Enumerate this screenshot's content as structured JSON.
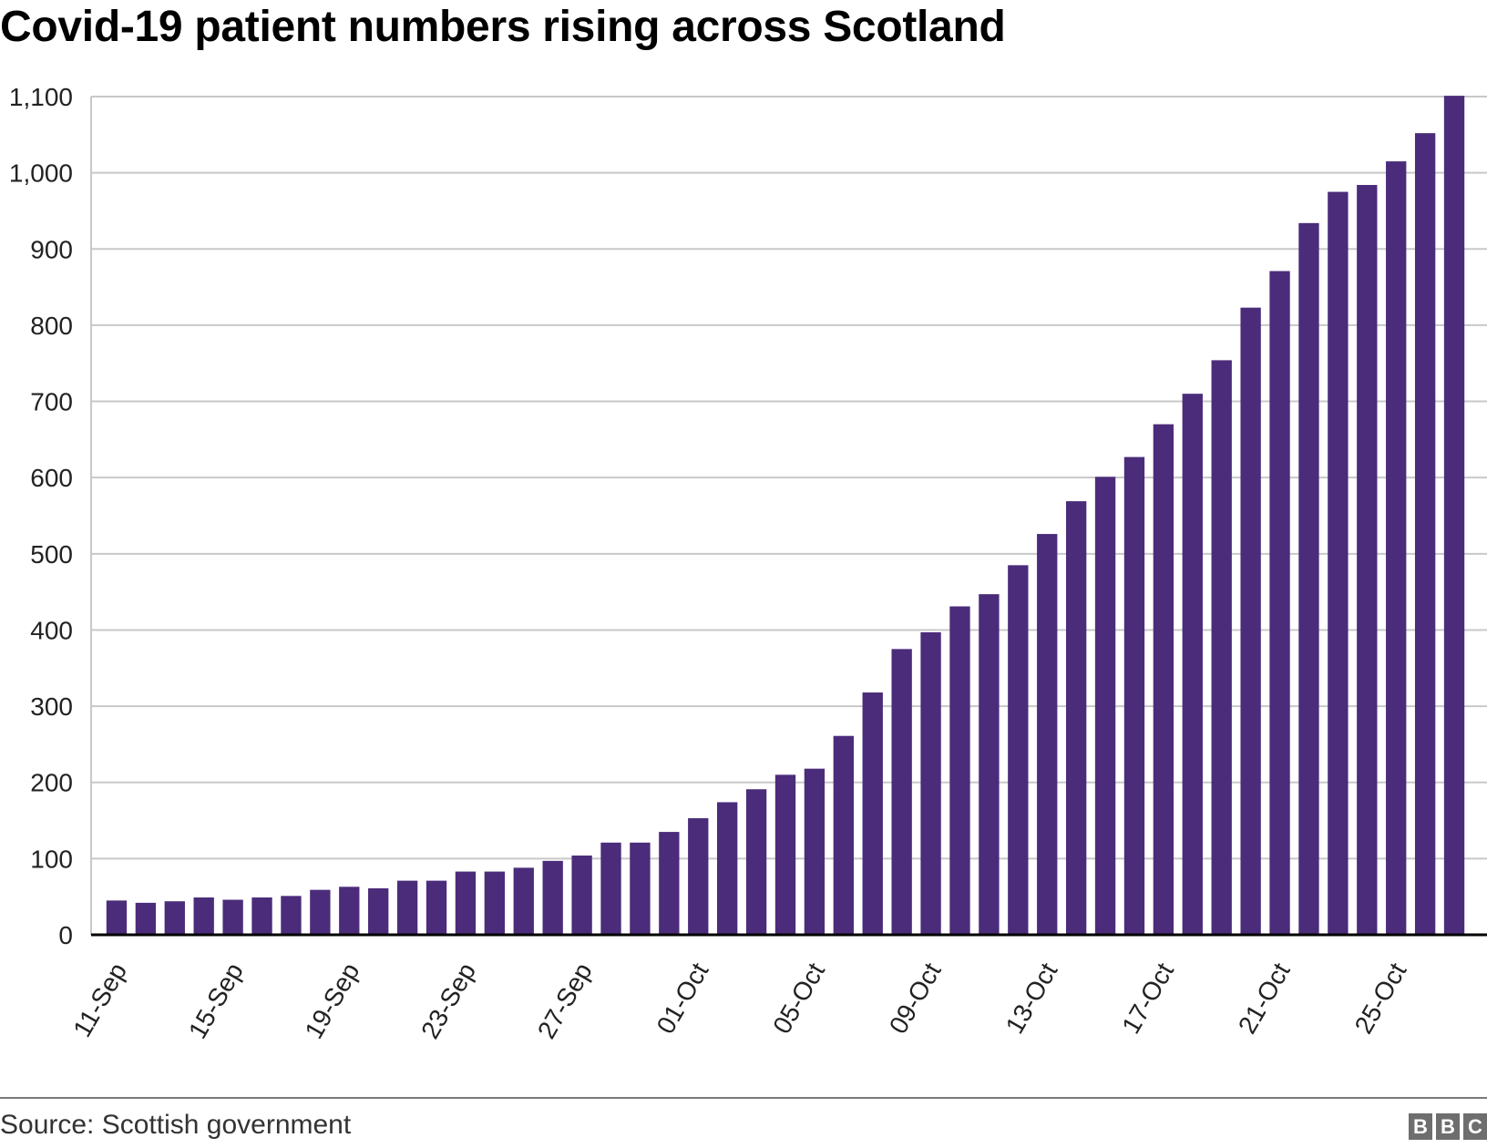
{
  "chart_data": {
    "type": "bar",
    "title": "Covid-19 patient numbers rising across Scotland",
    "xlabel": "",
    "ylabel": "",
    "ylim": [
      0,
      1100
    ],
    "yticks": [
      0,
      100,
      200,
      300,
      400,
      500,
      600,
      700,
      800,
      900,
      1000,
      1100
    ],
    "ytick_labels": [
      "0",
      "100",
      "200",
      "300",
      "400",
      "500",
      "600",
      "700",
      "800",
      "900",
      "1,000",
      "1,100"
    ],
    "grid": true,
    "bar_color": "#4b2c7a",
    "categories": [
      "11-Sep",
      "12-Sep",
      "13-Sep",
      "14-Sep",
      "15-Sep",
      "16-Sep",
      "17-Sep",
      "18-Sep",
      "19-Sep",
      "20-Sep",
      "21-Sep",
      "22-Sep",
      "23-Sep",
      "24-Sep",
      "25-Sep",
      "26-Sep",
      "27-Sep",
      "28-Sep",
      "29-Sep",
      "30-Sep",
      "01-Oct",
      "02-Oct",
      "03-Oct",
      "04-Oct",
      "05-Oct",
      "06-Oct",
      "07-Oct",
      "08-Oct",
      "09-Oct",
      "10-Oct",
      "11-Oct",
      "12-Oct",
      "13-Oct",
      "14-Oct",
      "15-Oct",
      "16-Oct",
      "17-Oct",
      "18-Oct",
      "19-Oct",
      "20-Oct",
      "21-Oct",
      "22-Oct",
      "23-Oct",
      "24-Oct",
      "25-Oct",
      "26-Oct",
      "27-Oct"
    ],
    "xtick_labels": [
      "11-Sep",
      "15-Sep",
      "19-Sep",
      "23-Sep",
      "27-Sep",
      "01-Oct",
      "05-Oct",
      "09-Oct",
      "13-Oct",
      "17-Oct",
      "21-Oct",
      "25-Oct"
    ],
    "values": [
      45,
      42,
      44,
      49,
      46,
      49,
      51,
      59,
      63,
      61,
      71,
      71,
      83,
      83,
      88,
      97,
      104,
      121,
      121,
      135,
      153,
      174,
      191,
      210,
      218,
      261,
      318,
      375,
      397,
      431,
      447,
      485,
      526,
      569,
      601,
      627,
      670,
      710,
      754,
      823,
      871,
      934,
      975,
      984,
      1015,
      1052,
      1101
    ]
  },
  "footer": {
    "source": "Source: Scottish government",
    "logo_letters": [
      "B",
      "B",
      "C"
    ]
  }
}
